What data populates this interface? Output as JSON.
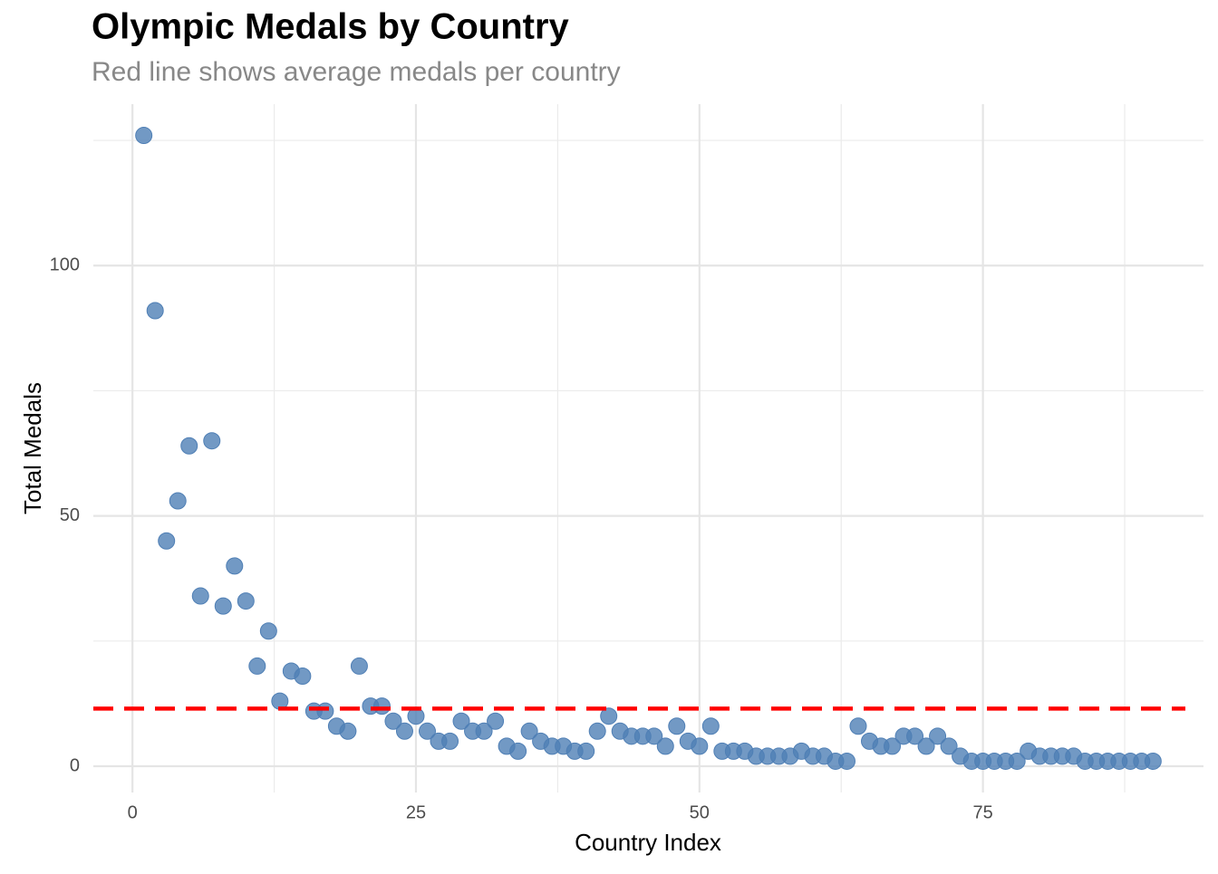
{
  "chart_data": {
    "type": "scatter",
    "title": "Olympic Medals by Country",
    "subtitle": "Red line shows average medals per country",
    "x_label": "Country Index",
    "y_label": "Total Medals",
    "x": [
      1,
      2,
      3,
      4,
      5,
      6,
      7,
      8,
      9,
      10,
      11,
      12,
      13,
      14,
      15,
      16,
      17,
      18,
      19,
      20,
      21,
      22,
      23,
      24,
      25,
      26,
      27,
      28,
      29,
      30,
      31,
      32,
      33,
      34,
      35,
      36,
      37,
      38,
      39,
      40,
      41,
      42,
      43,
      44,
      45,
      46,
      47,
      48,
      49,
      50,
      51,
      52,
      53,
      54,
      55,
      56,
      57,
      58,
      59,
      60,
      61,
      62,
      63,
      64,
      65,
      66,
      67,
      68,
      69,
      70,
      71,
      72,
      73,
      74,
      75,
      76,
      77,
      78,
      79,
      80,
      81,
      82,
      83,
      84,
      85,
      86,
      87,
      88,
      89,
      90
    ],
    "values": [
      126,
      91,
      45,
      53,
      64,
      34,
      65,
      32,
      40,
      33,
      20,
      27,
      13,
      19,
      18,
      11,
      11,
      8,
      7,
      20,
      12,
      12,
      9,
      7,
      10,
      7,
      5,
      5,
      9,
      7,
      7,
      9,
      4,
      3,
      7,
      5,
      4,
      4,
      3,
      3,
      7,
      10,
      7,
      6,
      6,
      6,
      4,
      8,
      5,
      4,
      8,
      3,
      3,
      3,
      2,
      2,
      2,
      2,
      3,
      2,
      2,
      1,
      1,
      8,
      5,
      4,
      4,
      6,
      6,
      4,
      6,
      4,
      2,
      1,
      1,
      1,
      1,
      1,
      3,
      2,
      2,
      2,
      2,
      1,
      1,
      1,
      1,
      1,
      1,
      1
    ],
    "color": "#4f7fb5",
    "average": 11.5,
    "average_color": "#ff0000",
    "xlim": [
      -3.45,
      94.45
    ],
    "ylim": [
      -5.25,
      132.25
    ],
    "xticks": [
      0,
      25,
      50,
      75
    ],
    "yticks": [
      0,
      50,
      100
    ],
    "x_minor_ticks": [
      12.5,
      37.5,
      62.5,
      87.5
    ],
    "y_minor_ticks": [
      25,
      75,
      125
    ],
    "grid": true
  }
}
